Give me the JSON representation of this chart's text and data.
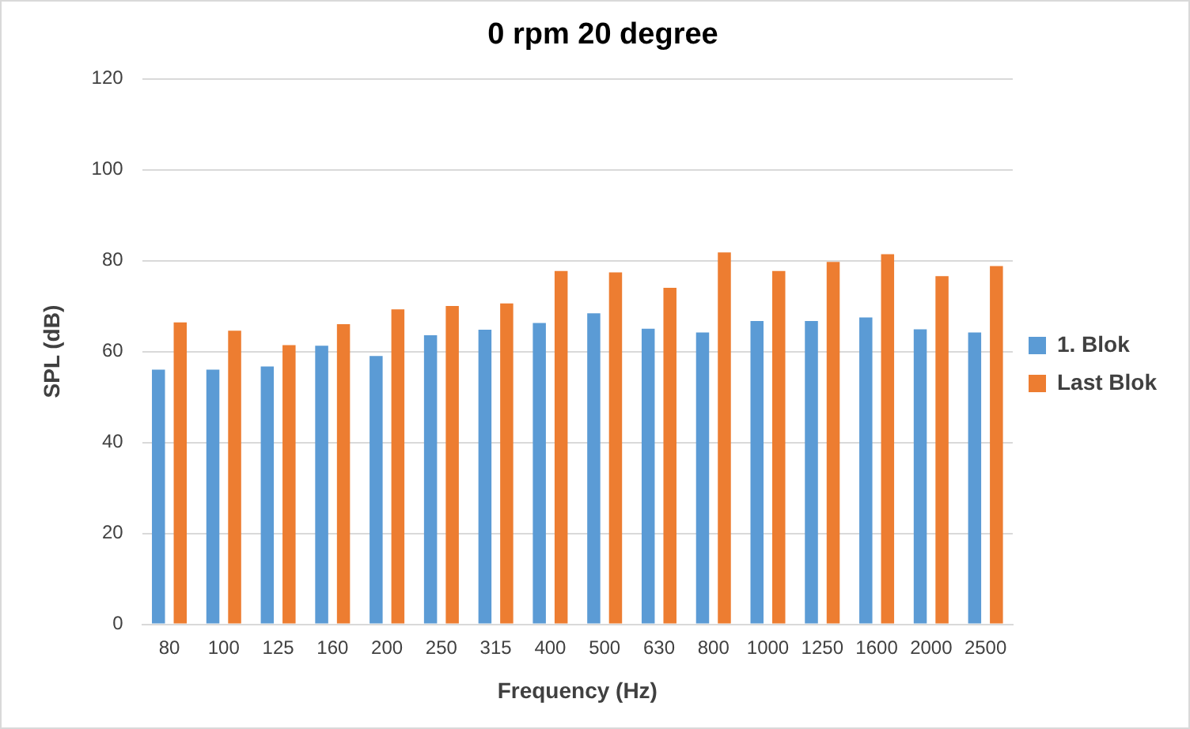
{
  "chart_data": {
    "type": "bar",
    "title": "0 rpm 20 degree",
    "xlabel": "Frequency (Hz)",
    "ylabel": "SPL (dB)",
    "categories": [
      "80",
      "100",
      "125",
      "160",
      "200",
      "250",
      "315",
      "400",
      "500",
      "630",
      "800",
      "1000",
      "1250",
      "1600",
      "2000",
      "2500"
    ],
    "series": [
      {
        "name": "1. Blok",
        "color": "#5b9bd5",
        "values": [
          56,
          56,
          56.7,
          61.3,
          59,
          63.6,
          64.8,
          66.3,
          68.4,
          65,
          64.2,
          66.7,
          66.7,
          67.5,
          64.9,
          64.2
        ]
      },
      {
        "name": "Last Blok",
        "color": "#ed7d31",
        "values": [
          66.4,
          64.6,
          61.4,
          66,
          69.3,
          70,
          70.6,
          77.7,
          77.4,
          74,
          81.8,
          77.7,
          79.7,
          81.4,
          76.6,
          78.8
        ]
      }
    ],
    "ylim": [
      0,
      120
    ],
    "yticks": [
      0,
      20,
      40,
      60,
      80,
      100,
      120
    ],
    "grid": "y",
    "legend": "right"
  }
}
